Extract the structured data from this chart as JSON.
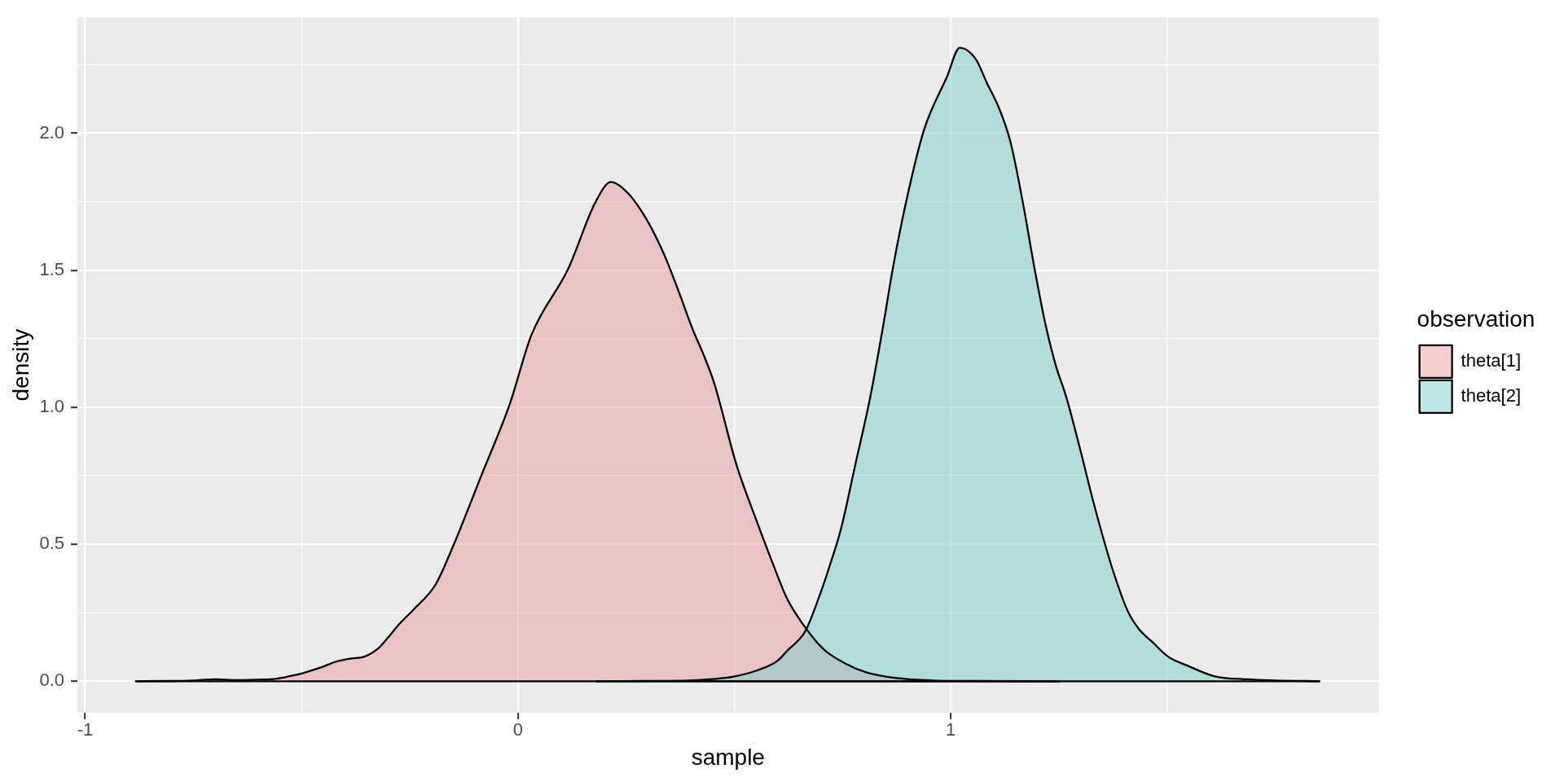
{
  "chart_data": {
    "type": "area",
    "xlabel": "sample",
    "ylabel": "density",
    "legend_title": "observation",
    "legend": "right",
    "grid": true,
    "xlim": [
      -1.018,
      1.989
    ],
    "ylim": [
      -0.115,
      2.423
    ],
    "xticks": [
      -1,
      {
        "value": -0.5,
        "label": null
      },
      0,
      {
        "value": 0.5,
        "label": null
      },
      1,
      {
        "value": 1.5,
        "label": null
      }
    ],
    "yticks": [
      {
        "value": 0,
        "label": "0.0"
      },
      {
        "value": 0.25,
        "label": null
      },
      0.5,
      {
        "value": 0.75,
        "label": null
      },
      {
        "value": 1,
        "label": "1.0"
      },
      {
        "value": 1.25,
        "label": null
      },
      1.5,
      {
        "value": 1.75,
        "label": null
      },
      {
        "value": 2,
        "label": "2.0"
      },
      {
        "value": 2.25,
        "label": null
      }
    ],
    "series": [
      {
        "name": "theta[1]",
        "color": "#eac4c4",
        "x": [
          -0.883,
          -0.8,
          -0.75,
          -0.7,
          -0.65,
          -0.6,
          -0.56,
          -0.526,
          -0.5,
          -0.46,
          -0.417,
          -0.385,
          -0.358,
          -0.325,
          -0.3,
          -0.274,
          -0.241,
          -0.19,
          -0.147,
          -0.083,
          -0.019,
          0.031,
          0.116,
          0.179,
          0.215,
          0.253,
          0.295,
          0.337,
          0.37,
          0.404,
          0.429,
          0.454,
          0.505,
          0.547,
          0.588,
          0.622,
          0.664,
          0.706,
          0.756,
          0.806,
          0.874,
          0.958,
          1.05,
          1.253
        ],
        "values": [
          0,
          0.001,
          0.003,
          0.007,
          0.004,
          0.006,
          0.009,
          0.019,
          0.028,
          0.048,
          0.073,
          0.083,
          0.088,
          0.117,
          0.16,
          0.209,
          0.262,
          0.354,
          0.504,
          0.757,
          1.011,
          1.263,
          1.505,
          1.748,
          1.822,
          1.783,
          1.691,
          1.56,
          1.428,
          1.283,
          1.191,
          1.085,
          0.789,
          0.604,
          0.433,
          0.301,
          0.196,
          0.117,
          0.065,
          0.032,
          0.012,
          0.003,
          0.001,
          0
        ]
      },
      {
        "name": "theta[2]",
        "color": "#b3dcdc",
        "x": [
          0.181,
          0.3,
          0.395,
          0.45,
          0.496,
          0.555,
          0.6,
          0.622,
          0.664,
          0.694,
          0.72,
          0.746,
          0.78,
          0.814,
          0.842,
          0.868,
          0.9,
          0.938,
          0.991,
          1.021,
          1.058,
          1.083,
          1.113,
          1.138,
          1.167,
          1.192,
          1.218,
          1.243,
          1.264,
          1.276,
          1.302,
          1.327,
          1.352,
          1.375,
          1.409,
          1.434,
          1.466,
          1.503,
          1.547,
          1.61,
          1.685,
          1.75,
          1.852
        ],
        "values": [
          0,
          0.001,
          0.003,
          0.008,
          0.016,
          0.041,
          0.075,
          0.111,
          0.183,
          0.3,
          0.42,
          0.554,
          0.794,
          1.037,
          1.28,
          1.522,
          1.772,
          2.011,
          2.205,
          2.312,
          2.27,
          2.185,
          2.086,
          1.968,
          1.744,
          1.52,
          1.309,
          1.151,
          1.052,
          0.986,
          0.828,
          0.67,
          0.525,
          0.403,
          0.256,
          0.192,
          0.143,
          0.089,
          0.057,
          0.018,
          0.007,
          0.003,
          0
        ]
      }
    ]
  }
}
